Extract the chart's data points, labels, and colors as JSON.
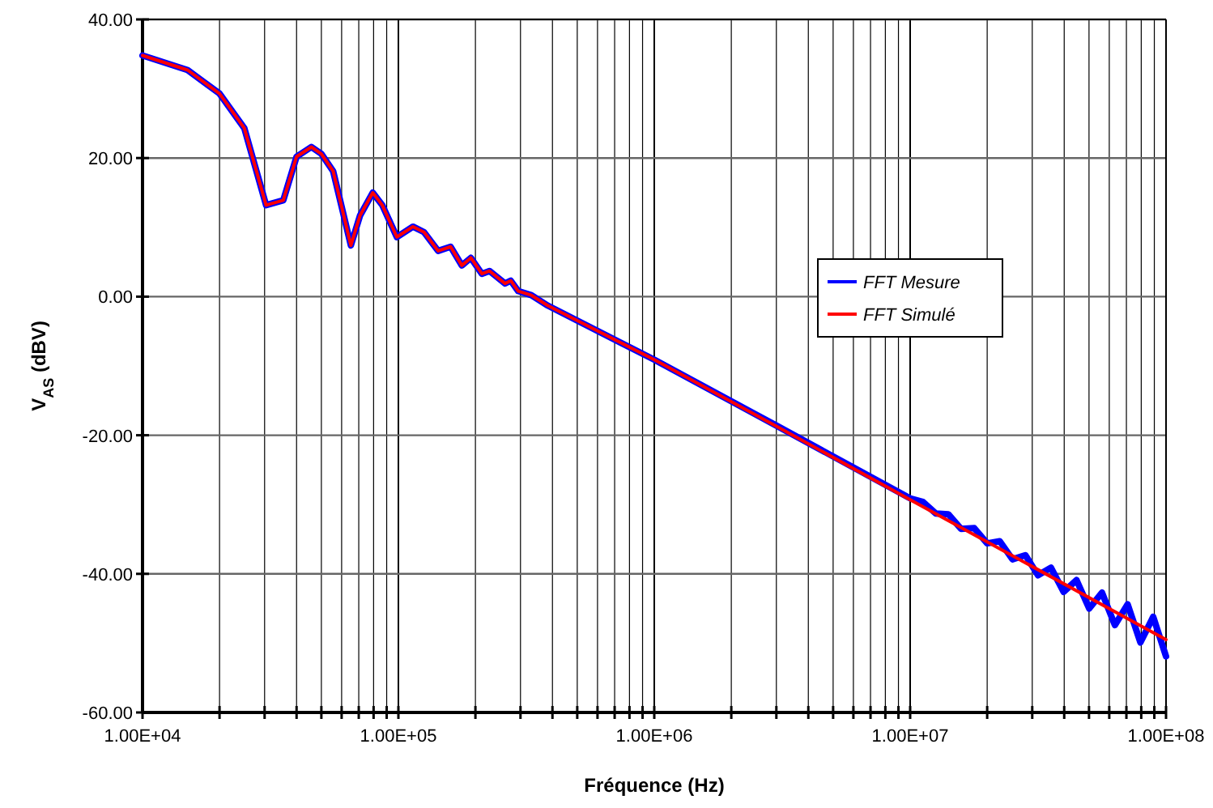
{
  "chart_data": {
    "type": "line",
    "xlabel": "Fréquence (Hz)",
    "ylabel": "V$_{AS}$ (dBV)",
    "log": "x",
    "grid": true,
    "legend": "right",
    "line_style": "solid",
    "xlim": [
      10000,
      100000000
    ],
    "ylim": [
      -60,
      40
    ],
    "yticks": [
      {
        "value": -60,
        "label": "-60.00"
      },
      {
        "value": -40,
        "label": "-40.00"
      },
      {
        "value": -20,
        "label": "-20.00"
      },
      {
        "value": 0,
        "label": "0.00"
      },
      {
        "value": 20,
        "label": "20.00"
      },
      {
        "value": 40,
        "label": "40.00"
      }
    ],
    "xticks": [
      {
        "value": 10000,
        "label": "1.00E+04"
      },
      {
        "value": 20000,
        "label": null
      },
      {
        "value": 30000,
        "label": null
      },
      {
        "value": 40000,
        "label": null
      },
      {
        "value": 50000,
        "label": null
      },
      {
        "value": 60000,
        "label": null
      },
      {
        "value": 70000,
        "label": null
      },
      {
        "value": 80000,
        "label": null
      },
      {
        "value": 90000,
        "label": null
      },
      {
        "value": 100000,
        "label": "1.00E+05"
      },
      {
        "value": 200000,
        "label": null
      },
      {
        "value": 300000,
        "label": null
      },
      {
        "value": 400000,
        "label": null
      },
      {
        "value": 500000,
        "label": null
      },
      {
        "value": 600000,
        "label": null
      },
      {
        "value": 700000,
        "label": null
      },
      {
        "value": 800000,
        "label": null
      },
      {
        "value": 900000,
        "label": null
      },
      {
        "value": 1000000,
        "label": "1.00E+06"
      },
      {
        "value": 2000000,
        "label": null
      },
      {
        "value": 3000000,
        "label": null
      },
      {
        "value": 4000000,
        "label": null
      },
      {
        "value": 5000000,
        "label": null
      },
      {
        "value": 6000000,
        "label": null
      },
      {
        "value": 7000000,
        "label": null
      },
      {
        "value": 8000000,
        "label": null
      },
      {
        "value": 9000000,
        "label": null
      },
      {
        "value": 10000000,
        "label": "1.00E+07"
      },
      {
        "value": 20000000,
        "label": null
      },
      {
        "value": 30000000,
        "label": null
      },
      {
        "value": 40000000,
        "label": null
      },
      {
        "value": 50000000,
        "label": null
      },
      {
        "value": 60000000,
        "label": null
      },
      {
        "value": 70000000,
        "label": null
      },
      {
        "value": 80000000,
        "label": null
      },
      {
        "value": 90000000,
        "label": null
      },
      {
        "value": 100000000,
        "label": "1.00E+08"
      }
    ],
    "series": [
      {
        "name": "FFT Mesure",
        "color": "#0000ff",
        "x": [
          10000,
          15000,
          20000,
          25000,
          30400,
          35500,
          40000,
          45700,
          50000,
          55600,
          65200,
          70800,
          79400,
          86500,
          98600,
          114000,
          126000,
          143000,
          160000,
          177000,
          192000,
          212000,
          227000,
          261000,
          275000,
          294000,
          331000,
          384000,
          1000000,
          3000000,
          10000000,
          11200000,
          12600000,
          14100000,
          15800000,
          17800000,
          20000000,
          22400000,
          25100000,
          28200000,
          31600000,
          35500000,
          39800000,
          44700000,
          50100000,
          56200000,
          63100000,
          70800000,
          79400000,
          89100000,
          100000000
        ],
        "values": [
          34.8,
          32.7,
          29.3,
          24.3,
          13.2,
          13.9,
          20.2,
          21.6,
          20.6,
          18.1,
          7.4,
          11.7,
          15.0,
          13.2,
          8.6,
          10.1,
          9.3,
          6.6,
          7.2,
          4.5,
          5.6,
          3.3,
          3.7,
          1.9,
          2.3,
          0.8,
          0.2,
          -1.3,
          -9.1,
          -18.6,
          -29.1,
          -29.6,
          -31.3,
          -31.4,
          -33.5,
          -33.4,
          -35.6,
          -35.3,
          -37.9,
          -37.3,
          -40.2,
          -39.1,
          -42.6,
          -40.9,
          -45.0,
          -42.7,
          -47.4,
          -44.4,
          -49.9,
          -46.2,
          -51.9
        ]
      },
      {
        "name": "FFT Simulé",
        "color": "#ff0000",
        "x": [
          10000,
          15000,
          20000,
          25000,
          30400,
          35500,
          40000,
          45700,
          50000,
          55600,
          65200,
          70800,
          79400,
          86500,
          98600,
          114000,
          126000,
          143000,
          160000,
          177000,
          192000,
          212000,
          227000,
          261000,
          275000,
          294000,
          331000,
          384000,
          1000000,
          3000000,
          10000000,
          100000000
        ],
        "values": [
          34.8,
          32.7,
          29.3,
          24.3,
          13.2,
          13.9,
          20.2,
          21.6,
          20.6,
          18.1,
          7.4,
          11.7,
          15.0,
          13.2,
          8.6,
          10.1,
          9.3,
          6.6,
          7.2,
          4.5,
          5.6,
          3.3,
          3.7,
          1.9,
          2.3,
          0.8,
          0.2,
          -1.3,
          -9.1,
          -18.7,
          -29.3,
          -49.5
        ]
      }
    ]
  }
}
